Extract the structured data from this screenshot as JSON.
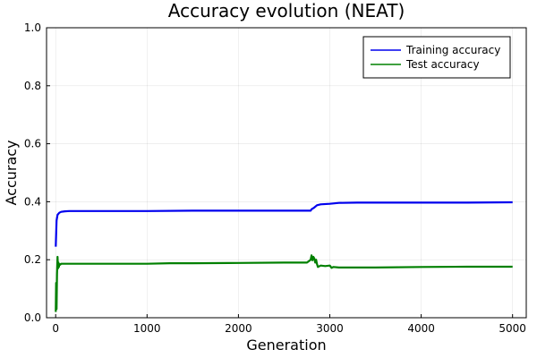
{
  "chart_data": {
    "type": "line",
    "title": "Accuracy evolution (NEAT)",
    "xlabel": "Generation",
    "ylabel": "Accuracy",
    "xlim": [
      -100,
      5150
    ],
    "ylim": [
      0,
      1
    ],
    "xticks": [
      0,
      1000,
      2000,
      3000,
      4000,
      5000
    ],
    "yticks": [
      0.0,
      0.2,
      0.4,
      0.6,
      0.8,
      1.0
    ],
    "xtick_labels": [
      "0",
      "1000",
      "2000",
      "3000",
      "4000",
      "5000"
    ],
    "ytick_labels": [
      "0.0",
      "0.2",
      "0.4",
      "0.6",
      "0.8",
      "1.0"
    ],
    "grid": true,
    "legend_position": "top-right",
    "series": [
      {
        "name": "Training accuracy",
        "color": "#0000ee",
        "x": [
          1,
          10,
          20,
          40,
          60,
          100,
          150,
          300,
          600,
          1000,
          1500,
          2000,
          2500,
          2790,
          2800,
          2830,
          2860,
          2900,
          3000,
          3100,
          3300,
          3600,
          4000,
          4500,
          5000
        ],
        "y": [
          0.245,
          0.335,
          0.355,
          0.362,
          0.365,
          0.367,
          0.368,
          0.368,
          0.368,
          0.368,
          0.369,
          0.369,
          0.369,
          0.369,
          0.374,
          0.38,
          0.388,
          0.391,
          0.393,
          0.396,
          0.397,
          0.397,
          0.397,
          0.397,
          0.398
        ]
      },
      {
        "name": "Test accuracy",
        "color": "#008000",
        "x": [
          1,
          5,
          10,
          15,
          20,
          25,
          30,
          35,
          40,
          50,
          60,
          80,
          100,
          200,
          500,
          1000,
          1250,
          1500,
          2000,
          2500,
          2750,
          2790,
          2800,
          2810,
          2820,
          2830,
          2840,
          2850,
          2860,
          2870,
          2900,
          2950,
          3000,
          3020,
          3040,
          3100,
          3500,
          4000,
          4500,
          5000
        ],
        "y": [
          0.02,
          0.12,
          0.03,
          0.15,
          0.21,
          0.17,
          0.19,
          0.175,
          0.185,
          0.183,
          0.186,
          0.186,
          0.186,
          0.186,
          0.186,
          0.186,
          0.188,
          0.188,
          0.189,
          0.19,
          0.19,
          0.2,
          0.215,
          0.198,
          0.21,
          0.205,
          0.19,
          0.2,
          0.185,
          0.175,
          0.18,
          0.178,
          0.18,
          0.172,
          0.175,
          0.173,
          0.173,
          0.175,
          0.176,
          0.176
        ]
      }
    ]
  }
}
